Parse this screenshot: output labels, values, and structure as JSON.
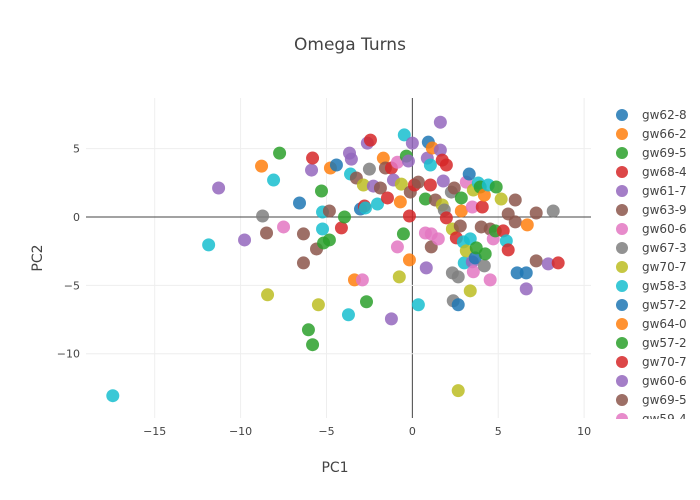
{
  "chart_data": {
    "type": "scatter",
    "title": "Omega Turns",
    "xlabel": "PC1",
    "ylabel": "PC2",
    "xlim": [
      -19,
      10.4
    ],
    "ylim": [
      -14.7,
      8.7
    ],
    "xticks": [
      -15,
      -10,
      -5,
      0,
      5,
      10
    ],
    "yticks": [
      -10,
      -5,
      0,
      5
    ],
    "grid": true,
    "legend_position": "right",
    "palette": [
      "#1f77b4",
      "#ff7f0e",
      "#2ca02c",
      "#d62728",
      "#9467bd",
      "#8c564b",
      "#e377c2",
      "#7f7f7f",
      "#bcbd22",
      "#17becf"
    ],
    "series": [
      "gw62-8",
      "gw66-2",
      "gw69-5",
      "gw68-4",
      "gw61-7",
      "gw63-9",
      "gw60-6",
      "gw67-3",
      "gw70-7",
      "gw58-3",
      "gw57-2",
      "gw64-0",
      "gw57-2",
      "gw70-7",
      "gw60-6",
      "gw69-5",
      "gw59-4"
    ],
    "points": [
      [
        -17.44,
        -13.07,
        9
      ],
      [
        -11.86,
        -2.04,
        9
      ],
      [
        -11.28,
        2.12,
        4
      ],
      [
        -9.77,
        -1.68,
        4
      ],
      [
        -8.78,
        3.72,
        1
      ],
      [
        -8.72,
        0.07,
        7
      ],
      [
        -8.49,
        -1.17,
        5
      ],
      [
        -8.43,
        -5.69,
        8
      ],
      [
        -8.08,
        2.7,
        9
      ],
      [
        -7.73,
        4.67,
        2
      ],
      [
        -7.5,
        -0.73,
        6
      ],
      [
        -6.57,
        1.02,
        0
      ],
      [
        -6.34,
        -1.24,
        5
      ],
      [
        -6.34,
        -3.36,
        5
      ],
      [
        -6.05,
        -8.25,
        2
      ],
      [
        -5.81,
        -9.34,
        2
      ],
      [
        -5.87,
        3.43,
        4
      ],
      [
        -5.81,
        4.31,
        3
      ],
      [
        -5.58,
        -2.34,
        5
      ],
      [
        -5.47,
        -6.42,
        8
      ],
      [
        -5.29,
        1.9,
        2
      ],
      [
        -5.23,
        0.36,
        9
      ],
      [
        -5.23,
        -0.88,
        9
      ],
      [
        -5.17,
        -1.9,
        2
      ],
      [
        -4.83,
        -1.68,
        2
      ],
      [
        -4.83,
        0.44,
        5
      ],
      [
        -4.77,
        3.58,
        1
      ],
      [
        -4.42,
        3.8,
        0
      ],
      [
        -4.13,
        -0.8,
        3
      ],
      [
        -3.95,
        0,
        2
      ],
      [
        -3.72,
        -7.15,
        9
      ],
      [
        -3.66,
        4.67,
        4
      ],
      [
        -3.6,
        3.14,
        9
      ],
      [
        -3.55,
        4.23,
        4
      ],
      [
        -3.37,
        -4.6,
        1
      ],
      [
        -3.26,
        2.85,
        5
      ],
      [
        -3.02,
        0.58,
        0
      ],
      [
        -2.91,
        -4.6,
        6
      ],
      [
        -2.85,
        2.34,
        8
      ],
      [
        -2.79,
        0.8,
        3
      ],
      [
        -2.67,
        -6.2,
        2
      ],
      [
        -2.73,
        0.66,
        9
      ],
      [
        -2.62,
        5.4,
        4
      ],
      [
        -2.44,
        5.62,
        3
      ],
      [
        -2.5,
        3.5,
        7
      ],
      [
        -2.27,
        2.26,
        4
      ],
      [
        -2.03,
        0.95,
        9
      ],
      [
        -1.86,
        2.12,
        5
      ],
      [
        -1.69,
        4.3,
        1
      ],
      [
        -1.57,
        3.58,
        5
      ],
      [
        -1.45,
        1.39,
        3
      ],
      [
        -1.22,
        3.58,
        3
      ],
      [
        -1.22,
        -7.45,
        4
      ],
      [
        -1.1,
        2.7,
        4
      ],
      [
        -0.87,
        4.0,
        6
      ],
      [
        -0.87,
        -2.19,
        6
      ],
      [
        -0.76,
        -4.38,
        8
      ],
      [
        -0.64,
        2.4,
        8
      ],
      [
        -0.7,
        1.1,
        1
      ],
      [
        -0.52,
        -1.24,
        2
      ],
      [
        -0.47,
        6.0,
        9
      ],
      [
        -0.35,
        4.45,
        2
      ],
      [
        -0.23,
        4.09,
        4
      ],
      [
        -0.17,
        0.07,
        3
      ],
      [
        -0.17,
        -3.14,
        1
      ],
      [
        -0.12,
        1.82,
        5
      ],
      [
        0,
        5.4,
        4
      ],
      [
        0.12,
        2.34,
        3
      ],
      [
        0.35,
        2.55,
        5
      ],
      [
        0.35,
        -6.42,
        9
      ],
      [
        0.76,
        1.31,
        2
      ],
      [
        0.76,
        -1.17,
        6
      ],
      [
        0.81,
        -3.72,
        4
      ],
      [
        0.87,
        4.3,
        4
      ],
      [
        0.93,
        5.47,
        0
      ],
      [
        1.05,
        3.8,
        9
      ],
      [
        1.16,
        5.04,
        1
      ],
      [
        1.05,
        2.34,
        3
      ],
      [
        1.1,
        -1.24,
        6
      ],
      [
        1.1,
        -2.19,
        5
      ],
      [
        1.34,
        1.24,
        5
      ],
      [
        1.51,
        -1.6,
        6
      ],
      [
        1.63,
        6.93,
        4
      ],
      [
        1.63,
        4.89,
        4
      ],
      [
        1.74,
        4.16,
        3
      ],
      [
        1.8,
        2.63,
        4
      ],
      [
        1.74,
        0.88,
        8
      ],
      [
        1.86,
        0.51,
        7
      ],
      [
        1.98,
        3.8,
        3
      ],
      [
        1.98,
        -0.07,
        3
      ],
      [
        2.27,
        1.82,
        7
      ],
      [
        2.33,
        -0.88,
        8
      ],
      [
        2.33,
        -4.09,
        7
      ],
      [
        2.38,
        -6.13,
        7
      ],
      [
        2.44,
        2.12,
        5
      ],
      [
        2.56,
        -1.53,
        3
      ],
      [
        2.67,
        -6.42,
        0
      ],
      [
        2.67,
        -4.38,
        7
      ],
      [
        2.67,
        -12.7,
        8
      ],
      [
        2.79,
        -0.66,
        5
      ],
      [
        2.85,
        0.44,
        1
      ],
      [
        2.85,
        1.39,
        2
      ],
      [
        2.97,
        -1.82,
        9
      ],
      [
        3.02,
        -3.36,
        9
      ],
      [
        3.14,
        -2.48,
        8
      ],
      [
        3.14,
        2.55,
        6
      ],
      [
        3.31,
        3.14,
        0
      ],
      [
        3.37,
        -1.6,
        9
      ],
      [
        3.37,
        -5.4,
        8
      ],
      [
        3.49,
        0.73,
        6
      ],
      [
        3.49,
        -3.28,
        4
      ],
      [
        3.55,
        1.97,
        8
      ],
      [
        3.55,
        -4.01,
        6
      ],
      [
        3.66,
        -2.99,
        0
      ],
      [
        3.72,
        -2.26,
        2
      ],
      [
        3.84,
        2.48,
        9
      ],
      [
        3.95,
        2.19,
        2
      ],
      [
        4.01,
        -0.73,
        5
      ],
      [
        4.19,
        -3.58,
        7
      ],
      [
        4.07,
        0.73,
        3
      ],
      [
        4.19,
        1.6,
        1
      ],
      [
        4.24,
        -2.7,
        2
      ],
      [
        4.42,
        2.34,
        9
      ],
      [
        4.53,
        -4.6,
        6
      ],
      [
        4.53,
        -0.88,
        5
      ],
      [
        4.71,
        -1.6,
        6
      ],
      [
        4.83,
        -1.02,
        2
      ],
      [
        4.88,
        2.19,
        2
      ],
      [
        5.17,
        1.31,
        8
      ],
      [
        5.29,
        -1.02,
        3
      ],
      [
        5.47,
        -1.75,
        9
      ],
      [
        5.58,
        0.22,
        5
      ],
      [
        5.58,
        -2.41,
        3
      ],
      [
        5.99,
        1.24,
        5
      ],
      [
        5.99,
        -0.36,
        5
      ],
      [
        6.1,
        -4.09,
        0
      ],
      [
        6.69,
        -0.58,
        1
      ],
      [
        6.63,
        -4.09,
        0
      ],
      [
        6.63,
        -5.26,
        4
      ],
      [
        7.21,
        0.29,
        5
      ],
      [
        7.21,
        -3.21,
        5
      ],
      [
        7.91,
        -3.43,
        4
      ],
      [
        8.2,
        0.44,
        7
      ],
      [
        8.49,
        -3.36,
        3
      ]
    ]
  }
}
